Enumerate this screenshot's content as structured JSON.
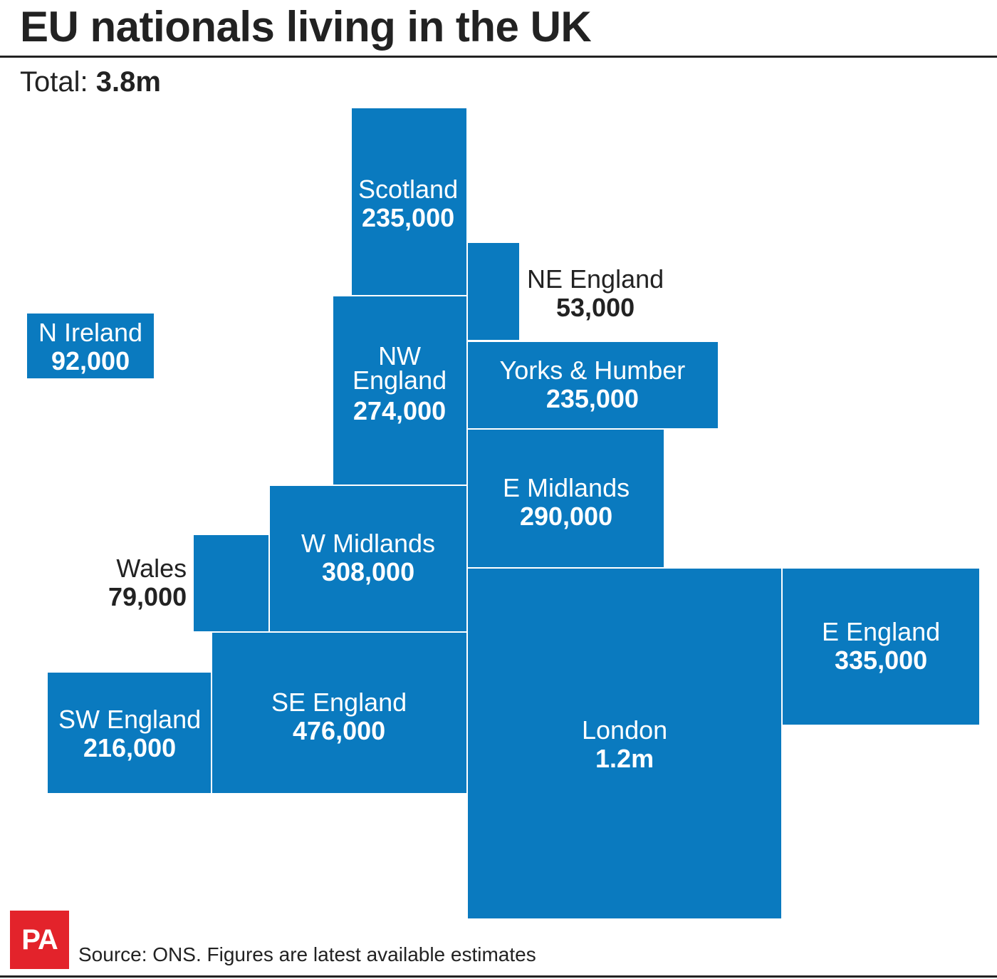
{
  "title": "EU nationals living in the UK",
  "total": {
    "label": "Total:",
    "value": "3.8m"
  },
  "colors": {
    "region_fill": "#0a7abf",
    "outside_label_text": "#222222",
    "inside_label_text": "#ffffff",
    "logo": "#e3232b"
  },
  "chart_data": {
    "type": "table",
    "title": "EU nationals living in the UK",
    "units": "people",
    "regions": [
      {
        "name": "Scotland",
        "display": "235,000",
        "value": 235000
      },
      {
        "name": "NE England",
        "display": "53,000",
        "value": 53000
      },
      {
        "name": "N Ireland",
        "display": "92,000",
        "value": 92000
      },
      {
        "name": "NW England",
        "display": "274,000",
        "value": 274000
      },
      {
        "name": "Yorks & Humber",
        "display": "235,000",
        "value": 235000
      },
      {
        "name": "E Midlands",
        "display": "290,000",
        "value": 290000
      },
      {
        "name": "Wales",
        "display": "79,000",
        "value": 79000
      },
      {
        "name": "W Midlands",
        "display": "308,000",
        "value": 308000
      },
      {
        "name": "E England",
        "display": "335,000",
        "value": 335000
      },
      {
        "name": "SW England",
        "display": "216,000",
        "value": 216000
      },
      {
        "name": "SE England",
        "display": "476,000",
        "value": 476000
      },
      {
        "name": "London",
        "display": "1.2m",
        "value": 1200000
      }
    ]
  },
  "footer": {
    "logo_text": "PA",
    "source": "Source: ONS. Figures are latest available estimates"
  }
}
